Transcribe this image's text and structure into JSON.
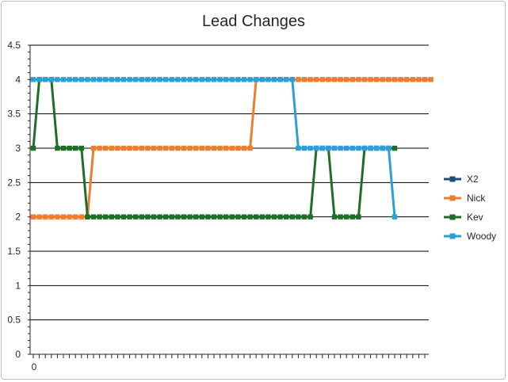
{
  "chart_data": {
    "type": "line",
    "title": "Lead Changes",
    "xlabel": "",
    "ylabel": "",
    "x_tick_labels": [
      "0"
    ],
    "y_ticks": [
      0,
      0.5,
      1,
      1.5,
      2,
      2.5,
      3,
      3.5,
      4,
      4.5
    ],
    "y_tick_labels": [
      "0",
      "0.5",
      "1",
      "1.5",
      "2",
      "2.5",
      "3",
      "3.5",
      "4",
      "4.5"
    ],
    "ylim": [
      0,
      4.5
    ],
    "xlim": [
      0,
      65
    ],
    "grid": "horizontal",
    "legend_position": "right",
    "series": [
      {
        "name": "X2",
        "color": "#1f4e79",
        "values": []
      },
      {
        "name": "Nick",
        "color": "#ed7d31",
        "values": [
          2,
          2,
          2,
          2,
          2,
          2,
          2,
          2,
          2,
          2,
          3,
          3,
          3,
          3,
          3,
          3,
          3,
          3,
          3,
          3,
          3,
          3,
          3,
          3,
          3,
          3,
          3,
          3,
          3,
          3,
          3,
          3,
          3,
          3,
          3,
          3,
          3,
          4,
          4,
          4,
          4,
          4,
          4,
          4,
          4,
          4,
          4,
          4,
          4,
          4,
          4,
          4,
          4,
          4,
          4,
          4,
          4,
          4,
          4,
          4,
          4,
          4,
          4,
          4,
          4,
          4,
          4
        ]
      },
      {
        "name": "Kev",
        "color": "#1e6e28",
        "values": [
          3,
          4,
          4,
          4,
          3,
          3,
          3,
          3,
          3,
          2,
          2,
          2,
          2,
          2,
          2,
          2,
          2,
          2,
          2,
          2,
          2,
          2,
          2,
          2,
          2,
          2,
          2,
          2,
          2,
          2,
          2,
          2,
          2,
          2,
          2,
          2,
          2,
          2,
          2,
          2,
          2,
          2,
          2,
          2,
          2,
          2,
          2,
          3,
          3,
          3,
          2,
          2,
          2,
          2,
          2,
          3,
          3,
          3,
          3,
          3,
          3
        ]
      },
      {
        "name": "Woody",
        "color": "#2e9fd6",
        "values": [
          4,
          4,
          4,
          4,
          4,
          4,
          4,
          4,
          4,
          4,
          4,
          4,
          4,
          4,
          4,
          4,
          4,
          4,
          4,
          4,
          4,
          4,
          4,
          4,
          4,
          4,
          4,
          4,
          4,
          4,
          4,
          4,
          4,
          4,
          4,
          4,
          4,
          4,
          4,
          4,
          4,
          4,
          4,
          4,
          3,
          3,
          3,
          3,
          3,
          3,
          3,
          3,
          3,
          3,
          3,
          3,
          3,
          3,
          3,
          3,
          2
        ]
      }
    ]
  }
}
